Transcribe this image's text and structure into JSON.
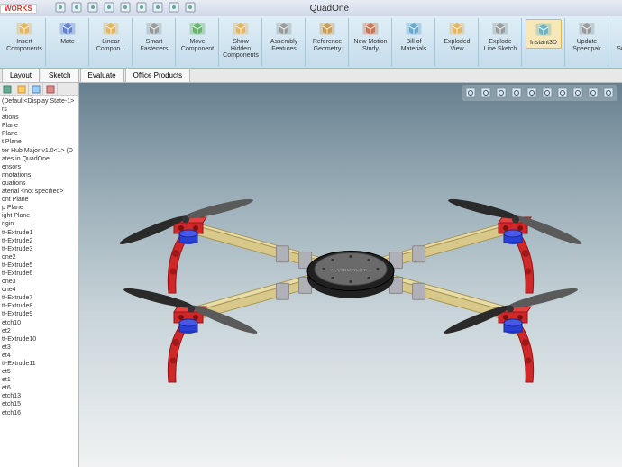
{
  "app": {
    "title": "QuadOne",
    "logo": "WORKS"
  },
  "ribbon": [
    {
      "icon": "cube-in",
      "label": "Insert Components"
    },
    {
      "icon": "mate",
      "label": "Mate"
    },
    {
      "icon": "linear",
      "label": "Linear Compon..."
    },
    {
      "icon": "bolt",
      "label": "Smart Fasteners"
    },
    {
      "icon": "move",
      "label": "Move Component"
    },
    {
      "icon": "hidden",
      "label": "Show Hidden Components"
    },
    {
      "icon": "assembly",
      "label": "Assembly Features"
    },
    {
      "icon": "refgeo",
      "label": "Reference Geometry"
    },
    {
      "icon": "motion",
      "label": "New Motion Study"
    },
    {
      "icon": "bom",
      "label": "Bill of Materials"
    },
    {
      "icon": "exploded",
      "label": "Exploded View"
    },
    {
      "icon": "expline",
      "label": "Explode Line Sketch"
    },
    {
      "icon": "i3d",
      "label": "Instant3D",
      "active": true
    },
    {
      "icon": "speedpak",
      "label": "Update Speedpak"
    },
    {
      "icon": "snapshot",
      "label": "Take Snapshot"
    }
  ],
  "qat": [
    "new",
    "open",
    "save",
    "print",
    "undo",
    "redo",
    "select",
    "rebuild",
    "options"
  ],
  "subtabs": [
    {
      "label": "Layout",
      "active": false
    },
    {
      "label": "Sketch",
      "active": false
    },
    {
      "label": "Evaluate",
      "active": false
    },
    {
      "label": "Office Products",
      "active": false
    }
  ],
  "tree": {
    "top": "(Default<Display State-1>",
    "items": [
      "rs",
      "ations",
      "Plane",
      "Plane",
      "t Plane",
      "",
      "",
      "ter Hub Major v1.0<1> (D",
      "ates in QuadOne",
      "ensors",
      "nnotations",
      "quations",
      "aterial <not specified>",
      "ont Plane",
      "p Plane",
      "ight Plane",
      "rigin",
      "tt-Extrude1",
      "tt-Extrude2",
      "tt-Extrude3",
      "one2",
      "tt-Extrude5",
      "tt-Extrude6",
      "one3",
      "one4",
      "tt-Extrude7",
      "tt-Extrude8",
      "tt-Extrude9",
      "etch10",
      "et2",
      "tt-Extrude10",
      "et3",
      "et4",
      "tt-Extrude11",
      "et5",
      "et1",
      "et6",
      "etch13",
      "",
      "etch15",
      "etch16"
    ]
  },
  "viewtools": [
    "zoom-fit",
    "zoom-area",
    "prev",
    "section",
    "display",
    "scene",
    "perspective",
    "shadow",
    "cartoon",
    "hide"
  ],
  "colors": {
    "arm": "#d8c88a",
    "bracket": "#b0b0b8",
    "mount": "#d02828",
    "motor": "#2840d8",
    "hubTop": "#6a6a6a",
    "hubBase": "#202020",
    "propLight": "#5a5a5a",
    "propDark": "#2a2a2a"
  },
  "hubText": "ARDUPILOT"
}
